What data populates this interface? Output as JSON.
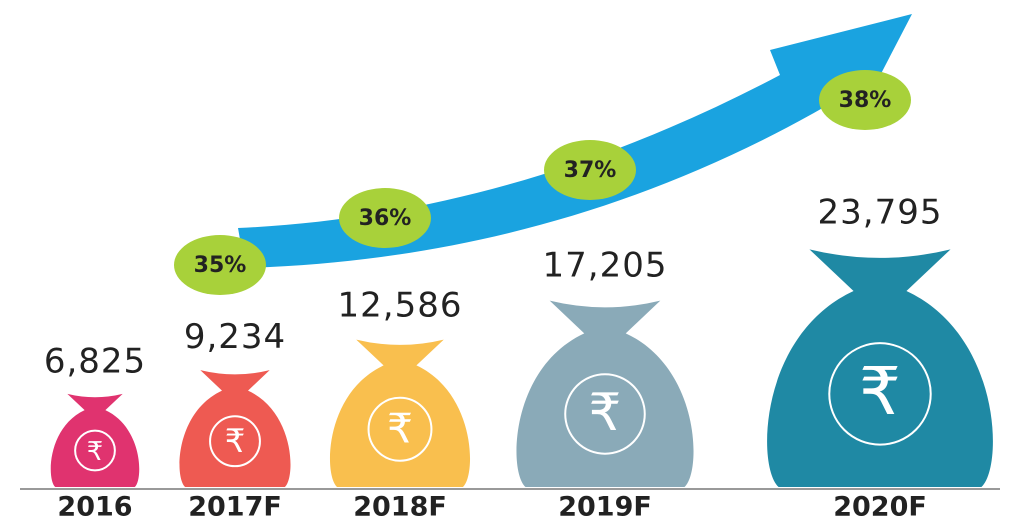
{
  "chart_data": {
    "type": "pictogram",
    "categories": [
      "2016",
      "2017F",
      "2018F",
      "2019F",
      "2020F"
    ],
    "values": [
      6825,
      9234,
      12586,
      17205,
      23795
    ],
    "value_labels": [
      "6,825",
      "9,234",
      "12,586",
      "17,205",
      "23,795"
    ],
    "colors": [
      "#e0336f",
      "#ee5a52",
      "#f9bf4e",
      "#8aaab8",
      "#1f89a4"
    ],
    "currency_symbol": "₹",
    "growth": {
      "values": [
        35,
        36,
        37,
        38
      ],
      "value_labels": [
        "35%",
        "36%",
        "37%",
        "38%"
      ],
      "color": "#a8d13a"
    }
  }
}
